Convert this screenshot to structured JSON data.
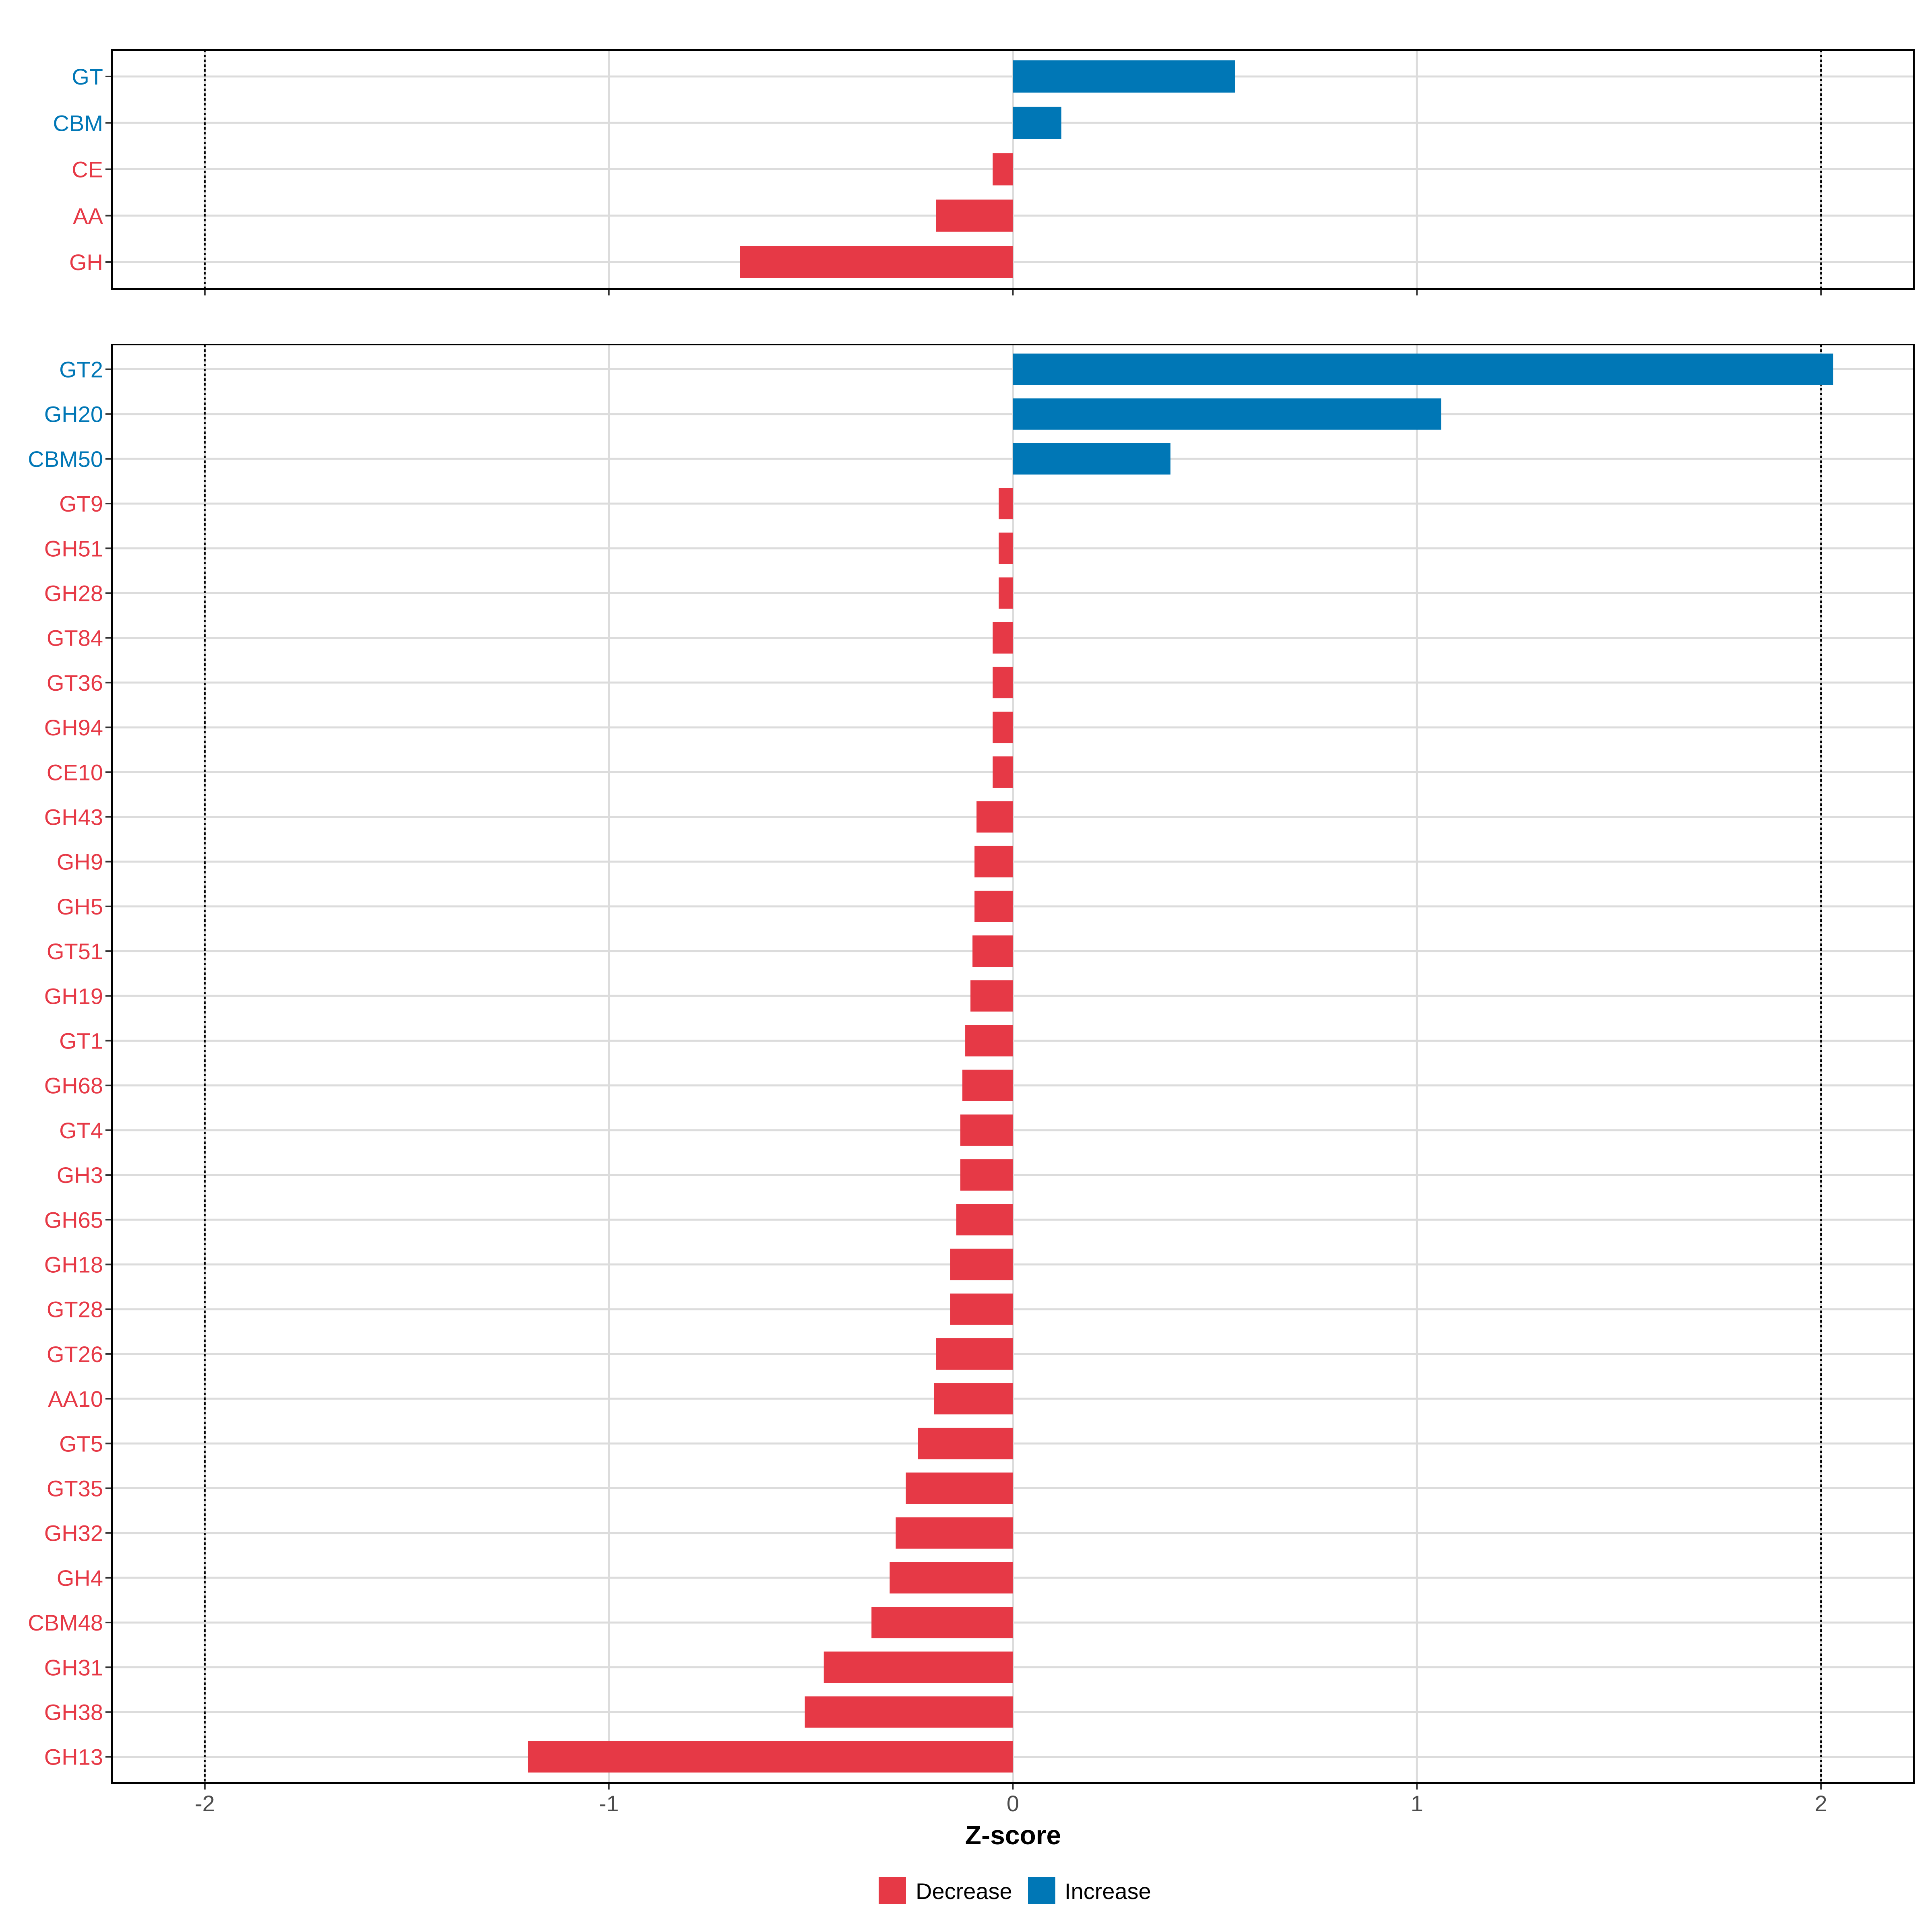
{
  "chart_data": {
    "type": "bar",
    "orientation": "horizontal",
    "xlabel": "Z-score",
    "xlim": [
      -2.23,
      2.23
    ],
    "xticks": [
      -2,
      -1,
      0,
      1,
      2
    ],
    "xtick_labels": [
      "-2",
      "-1",
      "0",
      "1",
      "2"
    ],
    "reference_lines": [
      -2,
      2
    ],
    "grid": true,
    "legend_position": "bottom",
    "legend": [
      {
        "key": "decrease",
        "label": "Decrease",
        "color": "#e63946"
      },
      {
        "key": "increase",
        "label": "Increase",
        "color": "#0077b6"
      }
    ],
    "panels": [
      {
        "name": "class",
        "categories": [
          "GT",
          "CBM",
          "CE",
          "AA",
          "GH"
        ],
        "values": [
          0.55,
          0.12,
          -0.05,
          -0.19,
          -0.675
        ]
      },
      {
        "name": "family",
        "categories": [
          "GT2",
          "GH20",
          "CBM50",
          "GT9",
          "GH51",
          "GH28",
          "GT84",
          "GT36",
          "GH94",
          "CE10",
          "GH43",
          "GH9",
          "GH5",
          "GT51",
          "GH19",
          "GT1",
          "GH68",
          "GT4",
          "GH3",
          "GH65",
          "GH18",
          "GT28",
          "GT26",
          "AA10",
          "GT5",
          "GT35",
          "GH32",
          "GH4",
          "CBM48",
          "GH31",
          "GH38",
          "GH13"
        ],
        "values": [
          2.03,
          1.06,
          0.39,
          -0.035,
          -0.035,
          -0.035,
          -0.05,
          -0.05,
          -0.05,
          -0.05,
          -0.09,
          -0.095,
          -0.095,
          -0.1,
          -0.105,
          -0.118,
          -0.125,
          -0.13,
          -0.13,
          -0.14,
          -0.155,
          -0.155,
          -0.19,
          -0.195,
          -0.235,
          -0.265,
          -0.29,
          -0.305,
          -0.35,
          -0.468,
          -0.515,
          -1.2
        ]
      }
    ]
  }
}
